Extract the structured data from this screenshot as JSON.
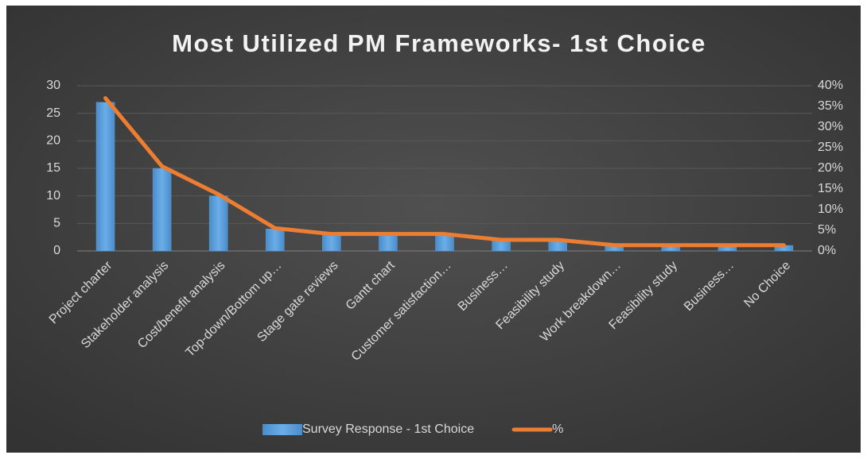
{
  "chart_data": {
    "type": "bar",
    "title": "Most Utilized PM Frameworks- 1st Choice",
    "categories": [
      "Project charter",
      "Stakeholder analysis",
      "Cost/benefit analysis",
      "Top-down/Bottom up…",
      "Stage gate reviews",
      "Gantt chart",
      "Customer satisfaction…",
      "Business…",
      "Feasibility study",
      "Work breakdown…",
      "Feasibility study",
      "Business…",
      "No Choice"
    ],
    "series": [
      {
        "name": "Survey Response - 1st Choice",
        "type": "bar",
        "color": "#5b9bd5",
        "values": [
          27,
          15,
          10,
          4,
          3,
          3,
          3,
          2,
          2,
          1,
          1,
          1,
          1
        ]
      },
      {
        "name": "%",
        "type": "line",
        "axis": "y2",
        "color": "#ed7d31",
        "values": [
          37,
          20.5,
          13.7,
          5.5,
          4.1,
          4.1,
          4.1,
          2.7,
          2.7,
          1.4,
          1.4,
          1.4,
          1.4
        ]
      }
    ],
    "ylim": [
      0,
      30
    ],
    "yticks": [
      0,
      5,
      10,
      15,
      20,
      25,
      30
    ],
    "y2lim": [
      0,
      40
    ],
    "y2ticks": [
      {
        "value": 0,
        "label": "0%"
      },
      {
        "value": 5,
        "label": "5%"
      },
      {
        "value": 10,
        "label": "10%"
      },
      {
        "value": 15,
        "label": "15%"
      },
      {
        "value": 20,
        "label": "20%"
      },
      {
        "value": 25,
        "label": "25%"
      },
      {
        "value": 30,
        "label": "30%"
      },
      {
        "value": 35,
        "label": "35%"
      },
      {
        "value": 40,
        "label": "40%"
      }
    ],
    "grid": true,
    "legend": "bottom"
  }
}
